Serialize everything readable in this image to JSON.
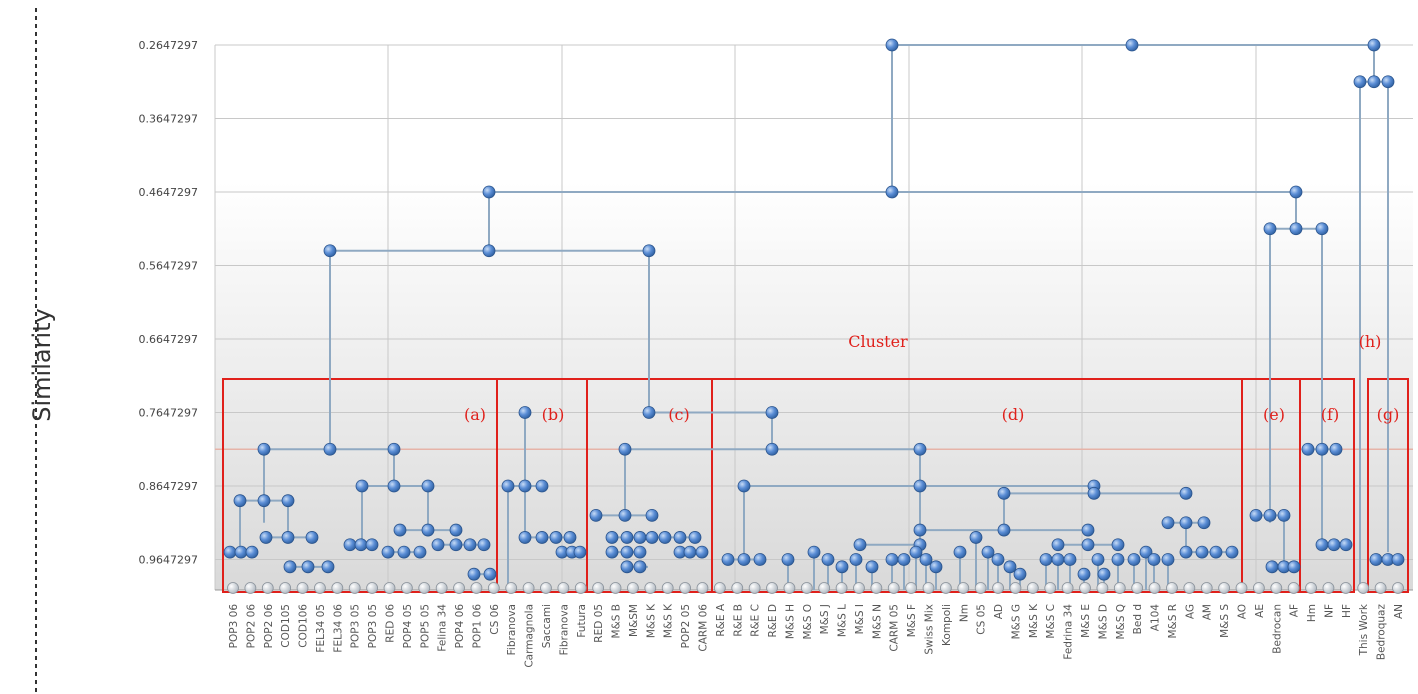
{
  "chart_data": {
    "type": "dendrogram",
    "ylabel": "Similarity",
    "y_ticks": [
      "0.2647297",
      "0.3647297",
      "0.4647297",
      "0.5647297",
      "0.6647297",
      "0.7647297",
      "0.8647297",
      "0.9647297"
    ],
    "ylim": [
      0.2647297,
      1.0
    ],
    "leaves": [
      "POP3 06",
      "POP2 06",
      "POP2 06",
      "COD105",
      "COD106",
      "FEL34 05",
      "FEL34 06",
      "POP3 05",
      "POP3 05",
      "RED 06",
      "POP4 05",
      "POP5 05",
      "Felina 34",
      "POP4 06",
      "POP1 06",
      "CS 06",
      "Fibranova",
      "Carmagnola",
      "Saccami",
      "Fibranova",
      "Futura",
      "RED 05",
      "M&S B",
      "M&SM",
      "M&S K",
      "M&S K",
      "POP2 05",
      "CARM 06",
      "R&E A",
      "R&E B",
      "R&E C",
      "R&E D",
      "M&S H",
      "M&S O",
      "M&S J",
      "M&S L",
      "M&S I",
      "M&S N",
      "CARM 05",
      "M&S F",
      "Swiss Mix",
      "Kompoli",
      "Nm",
      "CS 05",
      "AD",
      "M&S G",
      "M&S K",
      "M&S C",
      "Fedrina 34",
      "M&S E",
      "M&S D",
      "M&S Q",
      "Bed d",
      "A104",
      "M&S R",
      "AG",
      "AM",
      "M&S S",
      "AO",
      "AE",
      "Bedrocan",
      "AF",
      "Hm",
      "NF",
      "HF",
      "This Work",
      "Bedroquaz",
      "AN"
    ],
    "cluster_title": "Cluster",
    "cluster_labels": [
      "(a)",
      "(b)",
      "(c)",
      "(d)",
      "(e)",
      "(f)",
      "(g)",
      "(h)"
    ],
    "merges": [
      {
        "left": "(a)",
        "right": "(c)",
        "similarity": 0.5447
      },
      {
        "left": "(a)+(b)+(c)",
        "right": "(e)+(f)",
        "similarity": 0.4647
      },
      {
        "left": "(d)",
        "right": "(a)-(f)",
        "similarity": 0.2647
      },
      {
        "left": "(e)",
        "right": "(f)",
        "similarity": 0.5147
      },
      {
        "left": "(g)",
        "right": "(h)",
        "similarity": 0.3147
      },
      {
        "left": "all",
        "right": "(g)+(h)",
        "similarity": 0.2647
      }
    ],
    "colors": {
      "frame": "#e0201b",
      "node": "#5b8ed6",
      "line": "#8fa9c2",
      "grid": "#c8c8c8",
      "threshold": "#e6b3a8"
    }
  }
}
